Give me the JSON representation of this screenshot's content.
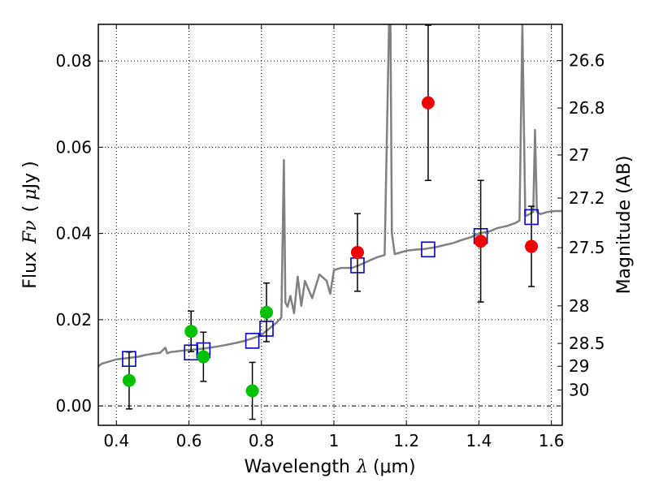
{
  "chart_data": {
    "type": "scatter",
    "title": "",
    "xlabel_text": "Wavelength",
    "xlabel_symbol": "λ",
    "xlabel_unit": "(μm)",
    "ylabel_text": "Flux",
    "ylabel_symbol": "Fν",
    "ylabel_unit_open": "(",
    "ylabel_unit_mu": "μ",
    "ylabel_unit_rest": "Jy",
    "ylabel_unit_close": ")",
    "ylabel_right": "Magnitude (AB)",
    "xlim": [
      0.35,
      1.63
    ],
    "ylim": [
      -0.0045,
      0.0885
    ],
    "x_ticks": [
      0.4,
      0.6,
      0.8,
      1.0,
      1.2,
      1.4,
      1.6
    ],
    "x_tick_labels": [
      "0.4",
      "0.6",
      "0.8",
      "1",
      "1.2",
      "1.4",
      "1.6"
    ],
    "y_ticks": [
      0.0,
      0.02,
      0.04,
      0.06,
      0.08
    ],
    "y_tick_labels": [
      "0.00",
      "0.02",
      "0.04",
      "0.06",
      "0.08"
    ],
    "right_ticks": [
      {
        "label": "26.6",
        "flux": 0.0801
      },
      {
        "label": "26.8",
        "flux": 0.0691
      },
      {
        "label": "27",
        "flux": 0.0582
      },
      {
        "label": "27.2",
        "flux": 0.0482
      },
      {
        "label": "27.5",
        "flux": 0.0367
      },
      {
        "label": "28",
        "flux": 0.0232
      },
      {
        "label": "28.5",
        "flux": 0.0145
      },
      {
        "label": "29",
        "flux": 0.0092
      },
      {
        "label": "30",
        "flux": 0.0037
      }
    ],
    "grid": true,
    "colors": {
      "template": "#808080",
      "green": "#00c000",
      "red": "#ee0000",
      "model_box": "#0000cc",
      "errorbar": "#000000"
    },
    "series": [
      {
        "marker": "circle",
        "color": "green",
        "points": [
          {
            "x": 0.435,
            "y": 0.0059,
            "err_lo": 0.0066,
            "err_hi": 0.0066
          },
          {
            "x": 0.606,
            "y": 0.0173,
            "err_lo": 0.0047,
            "err_hi": 0.0047
          },
          {
            "x": 0.64,
            "y": 0.0114,
            "err_lo": 0.0057,
            "err_hi": 0.0057
          },
          {
            "x": 0.775,
            "y": 0.0035,
            "err_lo": 0.0066,
            "err_hi": 0.0066
          },
          {
            "x": 0.814,
            "y": 0.0217,
            "err_lo": 0.0068,
            "err_hi": 0.0068
          }
        ]
      },
      {
        "marker": "circle",
        "color": "red",
        "points": [
          {
            "x": 1.065,
            "y": 0.0356,
            "err_lo": 0.009,
            "err_hi": 0.009
          },
          {
            "x": 1.26,
            "y": 0.0703,
            "err_lo": 0.018,
            "err_hi": 0.018
          },
          {
            "x": 1.405,
            "y": 0.0382,
            "err_lo": 0.0141,
            "err_hi": 0.0141
          },
          {
            "x": 1.545,
            "y": 0.037,
            "err_lo": 0.0093,
            "err_hi": 0.0093
          }
        ]
      },
      {
        "marker": "square",
        "color": "model_box",
        "points": [
          {
            "x": 0.435,
            "y": 0.0109
          },
          {
            "x": 0.606,
            "y": 0.0124
          },
          {
            "x": 0.64,
            "y": 0.0129
          },
          {
            "x": 0.775,
            "y": 0.0151
          },
          {
            "x": 0.814,
            "y": 0.0179
          },
          {
            "x": 1.065,
            "y": 0.0326
          },
          {
            "x": 1.26,
            "y": 0.0363
          },
          {
            "x": 1.405,
            "y": 0.0394
          },
          {
            "x": 1.545,
            "y": 0.0438
          }
        ]
      }
    ],
    "template_spectrum": {
      "x": [
        0.35,
        0.36,
        0.38,
        0.4,
        0.42,
        0.44,
        0.46,
        0.48,
        0.5,
        0.52,
        0.535,
        0.54,
        0.55,
        0.58,
        0.6,
        0.62,
        0.65,
        0.68,
        0.7,
        0.73,
        0.75,
        0.78,
        0.8,
        0.82,
        0.84,
        0.855,
        0.862,
        0.866,
        0.872,
        0.88,
        0.89,
        0.9,
        0.91,
        0.92,
        0.94,
        0.96,
        0.98,
        0.99,
        1.0,
        1.02,
        1.05,
        1.08,
        1.1,
        1.12,
        1.14,
        1.152,
        1.156,
        1.16,
        1.168,
        1.18,
        1.2,
        1.22,
        1.25,
        1.28,
        1.3,
        1.33,
        1.35,
        1.38,
        1.4,
        1.43,
        1.45,
        1.48,
        1.5,
        1.512,
        1.52,
        1.528,
        1.54,
        1.55,
        1.555,
        1.56,
        1.57,
        1.59,
        1.61,
        1.63
      ],
      "y": [
        0.0092,
        0.0098,
        0.0103,
        0.0108,
        0.011,
        0.0112,
        0.0114,
        0.0118,
        0.0121,
        0.0123,
        0.0135,
        0.0122,
        0.0125,
        0.0128,
        0.013,
        0.0131,
        0.0134,
        0.0138,
        0.0141,
        0.0146,
        0.015,
        0.0158,
        0.0165,
        0.0178,
        0.0192,
        0.0205,
        0.057,
        0.024,
        0.023,
        0.0255,
        0.0215,
        0.03,
        0.0232,
        0.029,
        0.025,
        0.0305,
        0.029,
        0.026,
        0.0315,
        0.032,
        0.032,
        0.033,
        0.0338,
        0.0345,
        0.035,
        0.0885,
        0.0885,
        0.04,
        0.0352,
        0.0355,
        0.036,
        0.0362,
        0.0364,
        0.0368,
        0.0372,
        0.0378,
        0.0384,
        0.0392,
        0.04,
        0.0405,
        0.0412,
        0.0418,
        0.0424,
        0.043,
        0.0885,
        0.044,
        0.0445,
        0.045,
        0.064,
        0.045,
        0.0445,
        0.045,
        0.0452,
        0.0452
      ]
    }
  }
}
